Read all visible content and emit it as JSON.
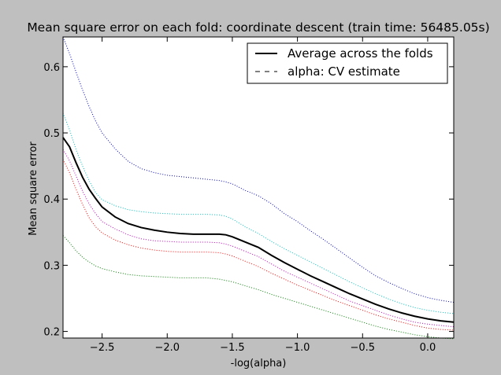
{
  "chart_data": {
    "type": "line",
    "title": "Mean square error on each fold: coordinate descent (train time: 56485.05s)",
    "xlabel": "-log(alpha)",
    "ylabel": "Mean square error",
    "xlim": [
      -2.8,
      0.2
    ],
    "ylim": [
      0.19,
      0.645
    ],
    "xticks": [
      -2.5,
      -2.0,
      -1.5,
      -1.0,
      -0.5,
      0.0
    ],
    "xtick_labels": [
      "−2.5",
      "−2.0",
      "−1.5",
      "−1.0",
      "−0.5",
      "0.0"
    ],
    "yticks": [
      0.2,
      0.3,
      0.4,
      0.5,
      0.6
    ],
    "ytick_labels": [
      "0.2",
      "0.3",
      "0.4",
      "0.5",
      "0.6"
    ],
    "grid": false,
    "legend": {
      "placement": "top-right",
      "entries": [
        {
          "label": "Average across the folds",
          "style": "solid-thick",
          "color": "#000000"
        },
        {
          "label": "alpha: CV estimate",
          "style": "dashed",
          "color": "#000000"
        }
      ]
    },
    "x": [
      -2.8,
      -2.75,
      -2.7,
      -2.65,
      -2.6,
      -2.55,
      -2.5,
      -2.4,
      -2.3,
      -2.2,
      -2.1,
      -2.0,
      -1.9,
      -1.8,
      -1.7,
      -1.6,
      -1.55,
      -1.5,
      -1.45,
      -1.4,
      -1.3,
      -1.2,
      -1.1,
      -1.0,
      -0.9,
      -0.8,
      -0.7,
      -0.6,
      -0.5,
      -0.4,
      -0.3,
      -0.2,
      -0.1,
      0.0,
      0.1,
      0.2
    ],
    "series": [
      {
        "color": "#0000bf",
        "style": "dotted",
        "values": [
          0.645,
          0.62,
          0.592,
          0.565,
          0.54,
          0.518,
          0.5,
          0.476,
          0.457,
          0.446,
          0.44,
          0.436,
          0.434,
          0.432,
          0.43,
          0.428,
          0.426,
          0.423,
          0.418,
          0.413,
          0.405,
          0.393,
          0.378,
          0.366,
          0.352,
          0.339,
          0.325,
          0.311,
          0.297,
          0.284,
          0.274,
          0.265,
          0.257,
          0.251,
          0.247,
          0.244
        ]
      },
      {
        "color": "#00bfbf",
        "style": "dotted",
        "values": [
          0.53,
          0.505,
          0.475,
          0.45,
          0.428,
          0.41,
          0.399,
          0.39,
          0.384,
          0.381,
          0.379,
          0.378,
          0.377,
          0.377,
          0.377,
          0.376,
          0.374,
          0.37,
          0.364,
          0.358,
          0.348,
          0.336,
          0.325,
          0.315,
          0.305,
          0.295,
          0.285,
          0.275,
          0.266,
          0.257,
          0.249,
          0.242,
          0.236,
          0.232,
          0.229,
          0.227
        ]
      },
      {
        "color": "#000000",
        "style": "solid-thick",
        "values": [
          0.493,
          0.479,
          0.455,
          0.433,
          0.415,
          0.401,
          0.388,
          0.373,
          0.363,
          0.357,
          0.353,
          0.35,
          0.348,
          0.347,
          0.347,
          0.347,
          0.346,
          0.343,
          0.339,
          0.335,
          0.327,
          0.315,
          0.304,
          0.294,
          0.284,
          0.275,
          0.266,
          0.257,
          0.249,
          0.241,
          0.234,
          0.228,
          0.223,
          0.219,
          0.216,
          0.214
        ]
      },
      {
        "color": "#bf00bf",
        "style": "dotted",
        "values": [
          0.475,
          0.458,
          0.435,
          0.412,
          0.393,
          0.378,
          0.366,
          0.355,
          0.346,
          0.34,
          0.337,
          0.336,
          0.335,
          0.335,
          0.335,
          0.334,
          0.332,
          0.329,
          0.325,
          0.321,
          0.313,
          0.302,
          0.291,
          0.282,
          0.273,
          0.264,
          0.255,
          0.246,
          0.239,
          0.232,
          0.225,
          0.219,
          0.214,
          0.211,
          0.209,
          0.207
        ]
      },
      {
        "color": "#ff0000",
        "style": "dotted",
        "values": [
          0.46,
          0.44,
          0.415,
          0.392,
          0.372,
          0.358,
          0.349,
          0.338,
          0.331,
          0.326,
          0.323,
          0.321,
          0.32,
          0.32,
          0.32,
          0.319,
          0.317,
          0.314,
          0.31,
          0.306,
          0.298,
          0.288,
          0.279,
          0.27,
          0.262,
          0.254,
          0.246,
          0.239,
          0.232,
          0.225,
          0.219,
          0.214,
          0.209,
          0.205,
          0.203,
          0.202
        ]
      },
      {
        "color": "#008000",
        "style": "dotted",
        "values": [
          0.345,
          0.334,
          0.322,
          0.312,
          0.305,
          0.299,
          0.295,
          0.29,
          0.286,
          0.284,
          0.283,
          0.282,
          0.281,
          0.281,
          0.281,
          0.279,
          0.277,
          0.275,
          0.272,
          0.269,
          0.263,
          0.256,
          0.25,
          0.244,
          0.238,
          0.232,
          0.226,
          0.22,
          0.214,
          0.208,
          0.203,
          0.199,
          0.195,
          0.192,
          0.19,
          0.189
        ]
      }
    ]
  }
}
